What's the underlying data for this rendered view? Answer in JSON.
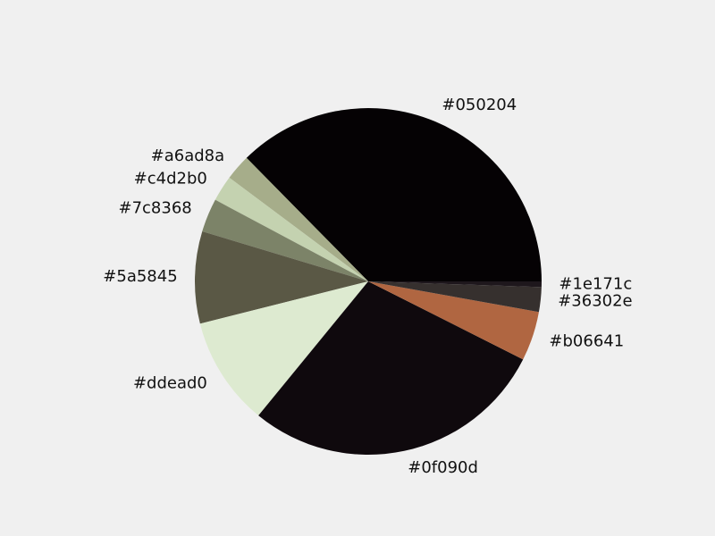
{
  "chart_data": {
    "type": "pie",
    "title": "",
    "legend": "none",
    "start_angle_deg": 0,
    "direction": "counterclockwise",
    "slices": [
      {
        "label": "#050204",
        "value": 35.7,
        "color": "#050204"
      },
      {
        "label": "#a6ad8a",
        "value": 2.3,
        "color": "#a6ad8a"
      },
      {
        "label": "#c4d2b0",
        "value": 2.3,
        "color": "#c4d2b0"
      },
      {
        "label": "#7c8368",
        "value": 3.0,
        "color": "#7c8368"
      },
      {
        "label": "#5a5845",
        "value": 8.2,
        "color": "#5a5845"
      },
      {
        "label": "#ddead0",
        "value": 9.7,
        "color": "#ddead0"
      },
      {
        "label": "#0f090d",
        "value": 27.2,
        "color": "#0f090d"
      },
      {
        "label": "#b06641",
        "value": 4.4,
        "color": "#b06641"
      },
      {
        "label": "#36302e",
        "value": 2.2,
        "color": "#36302e"
      },
      {
        "label": "#1e171c",
        "value": 0.5,
        "color": "#1e171c"
      }
    ]
  }
}
